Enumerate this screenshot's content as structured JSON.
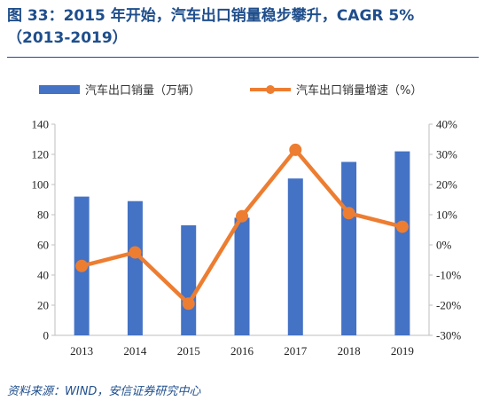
{
  "title_line1": "图 33：2015 年开始，汽车出口销量稳步攀升，CAGR 5%",
  "title_line2": "（2013-2019）",
  "source": "资料来源：WIND，安信证券研究中心",
  "colors": {
    "bar": "#4472c4",
    "line": "#ed7d31",
    "title": "#1f4e8c",
    "axis": "#bfbfbf"
  },
  "chart_data": {
    "type": "bar",
    "categories": [
      "2013",
      "2014",
      "2015",
      "2016",
      "2017",
      "2018",
      "2019"
    ],
    "series": [
      {
        "name": "汽车出口销量（万辆）",
        "type": "bar",
        "axis": "left",
        "values": [
          92,
          89,
          73,
          78,
          104,
          115,
          122
        ]
      },
      {
        "name": "汽车出口销量增速（%）",
        "type": "line",
        "axis": "right",
        "values": [
          -7,
          -2.5,
          -19.5,
          9.5,
          31.5,
          10.5,
          6
        ]
      }
    ],
    "ylim_left": [
      0,
      140
    ],
    "yticks_left": [
      "0",
      "20",
      "40",
      "60",
      "80",
      "100",
      "120",
      "140"
    ],
    "ylim_right": [
      -30,
      40
    ],
    "yticks_right": [
      "-30%",
      "-20%",
      "-10%",
      "0%",
      "10%",
      "20%",
      "30%",
      "40%"
    ],
    "legend_position": "top",
    "grid": false
  }
}
